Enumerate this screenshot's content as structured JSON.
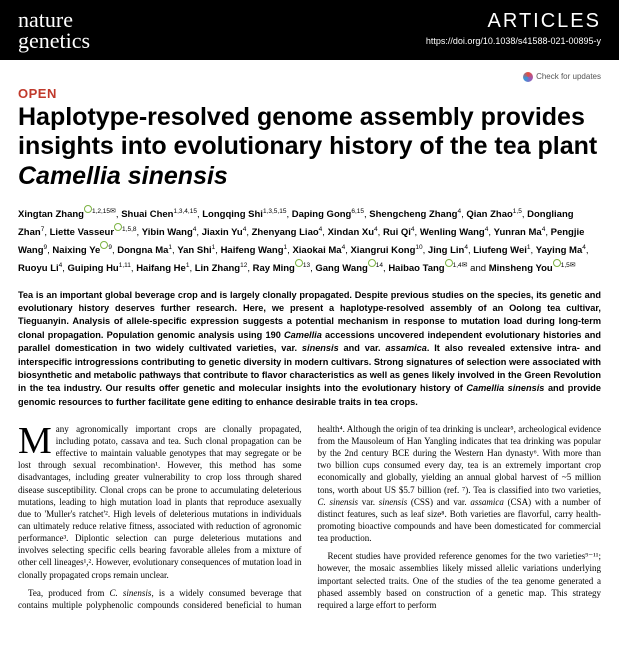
{
  "header": {
    "brand_line1": "nature",
    "brand_line2": "genetics",
    "section": "ARTICLES",
    "doi": "https://doi.org/10.1038/s41588-021-00895-y"
  },
  "check_updates": "Check for updates",
  "open_label": "OPEN",
  "title_part1": "Haplotype-resolved genome assembly provides insights into evolutionary history of the tea plant ",
  "title_species": "Camellia sinensis",
  "authors_html": "Xingtan Zhang¹,²,¹⁵✉, Shuai Chen¹,³,⁴,¹⁵, Longqing Shi¹,³,⁵,¹⁵, Daping Gong⁶,¹⁵, Shengcheng Zhang⁴, Qian Zhao¹,⁵, Dongliang Zhan⁷, Liette Vasseur¹,⁵,⁸, Yibin Wang⁴, Jiaxin Yu⁴, Zhenyang Liao⁴, Xindan Xu⁴, Rui Qi⁴, Wenling Wang⁴, Yunran Ma⁴, Pengjie Wang⁹, Naixing Ye⁹, Dongna Ma¹, Yan Shi¹, Haifeng Wang¹, Xiaokai Ma⁴, Xiangrui Kong¹⁰, Jing Lin⁴, Liufeng Wei¹, Yaying Ma⁴, Ruoyu Li⁴, Guiping Hu¹,¹¹, Haifang He¹, Lin Zhang¹², Ray Ming¹³, Gang Wang¹⁴, Haibao Tang¹,⁴✉ and Minsheng You¹,⁵✉",
  "abstract": "Tea is an important global beverage crop and is largely clonally propagated. Despite previous studies on the species, its genetic and evolutionary history deserves further research. Here, we present a haplotype-resolved assembly of an Oolong tea cultivar, Tieguanyin. Analysis of allele-specific expression suggests a potential mechanism in response to mutation load during long-term clonal propagation. Population genomic analysis using 190 Camellia accessions uncovered independent evolutionary histories and parallel domestication in two widely cultivated varieties, var. sinensis and var. assamica. It also revealed extensive intra- and interspecific introgressions contributing to genetic diversity in modern cultivars. Strong signatures of selection were associated with biosynthetic and metabolic pathways that contribute to flavor characteristics as well as genes likely involved in the Green Revolution in the tea industry. Our results offer genetic and molecular insights into the evolutionary history of Camellia sinensis and provide genomic resources to further facilitate gene editing to enhance desirable traits in tea crops.",
  "body": {
    "p1": "any agronomically important crops are clonally propagated, including potato, cassava and tea. Such clonal propagation can be effective to maintain valuable genotypes that may segregate or be lost through sexual recombination¹. However, this method has some disadvantages, including greater vulnerability to crop loss through shared disease susceptibility. Clonal crops can be prone to accumulating deleterious mutations, leading to high mutation load in plants that reproduce asexually due to 'Muller's ratchet'². High levels of deleterious mutations in individuals can ultimately reduce relative fitness, associated with reduction of agronomic performance³. Diplontic selection can purge deleterious mutations and involves selecting specific cells bearing favorable alleles from a mixture of other cell lineages¹,². However, evolutionary consequences of mutation load in clonally propagated crops remain unclear.",
    "p2": "Tea, produced from C. sinensis, is a widely consumed beverage that contains multiple polyphenolic compounds considered beneficial to human health⁴. Although the origin of tea drinking is unclear⁵, archeological evidence from the Mausoleum of Han Yangling indicates that tea drinking was popular by the 2nd century BCE during the Western Han dynasty⁶. With more than two billion cups consumed every day, tea is an extremely important crop economically and globally, yielding an annual global harvest of ~5 million tons, worth about US $5.7 billion (ref. ⁷). Tea is classified into two varieties, C. sinensis var. sinensis (CSS) and var. assamica (CSA) with a number of distinct features, such as leaf size⁸. Both varieties are flavorful, carry health-promoting bioactive compounds and have been domesticated for commercial tea production.",
    "p3": "Recent studies have provided reference genomes for the two varieties⁹⁻¹¹; however, the mosaic assemblies likely missed allelic variations underlying important selected traits. One of the studies of the tea genome generated a phased assembly based on construction of a genetic map. This strategy required a large effort to perform"
  },
  "colors": {
    "header_bg": "#000000",
    "header_fg": "#ffffff",
    "open_color": "#c0392b",
    "orcid_color": "#7cb342"
  }
}
